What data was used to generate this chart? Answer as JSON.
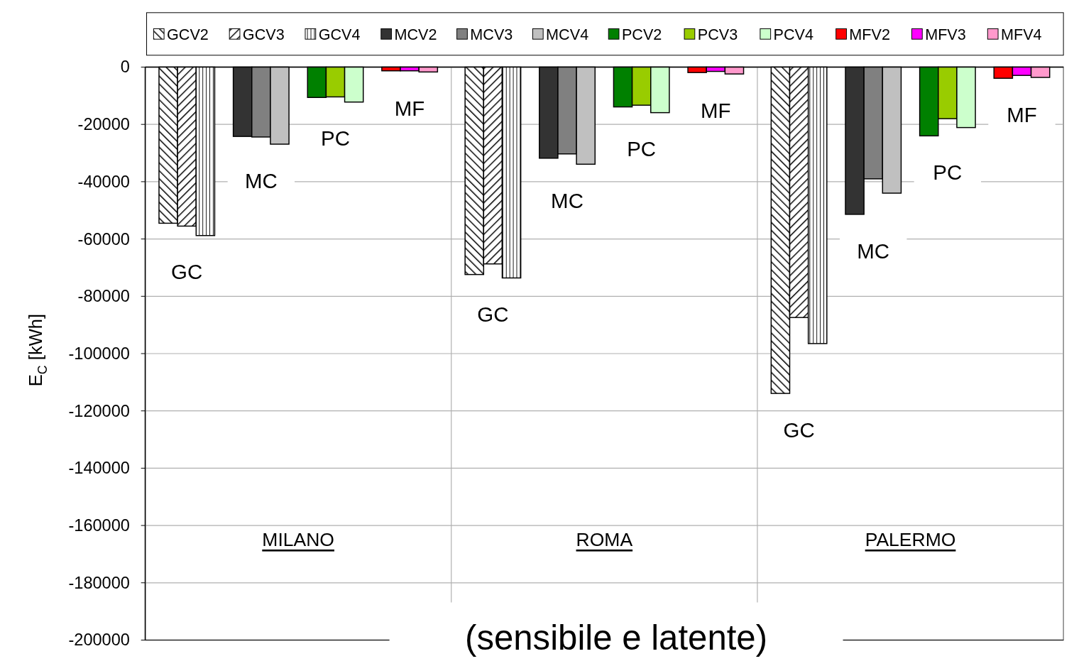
{
  "chart_data": {
    "type": "bar",
    "title": "(sensibile e latente)",
    "ylabel": "E$_{C}$ [kWh]",
    "categories": [
      "MILANO",
      "ROMA",
      "PALERMO"
    ],
    "series": [
      {
        "name": "GCV2",
        "color": "#000000",
        "values": [
          -54500,
          -72400,
          -113900
        ]
      },
      {
        "name": "GCV3",
        "color": "#000000",
        "values": [
          -55500,
          -68700,
          -87400
        ]
      },
      {
        "name": "GCV4",
        "color": "#000000",
        "values": [
          -58800,
          -73600,
          -96500
        ]
      },
      {
        "name": "MCV2",
        "color": "#333333",
        "values": [
          -24200,
          -31800,
          -51400
        ]
      },
      {
        "name": "MCV3",
        "color": "#808080",
        "values": [
          -24400,
          -30300,
          -39000
        ]
      },
      {
        "name": "MCV4",
        "color": "#c0c0c0",
        "values": [
          -26900,
          -33900,
          -44000
        ]
      },
      {
        "name": "PCV2",
        "color": "#008000",
        "values": [
          -10600,
          -13900,
          -24000
        ]
      },
      {
        "name": "PCV3",
        "color": "#99cc00",
        "values": [
          -10400,
          -13300,
          -18000
        ]
      },
      {
        "name": "PCV4",
        "color": "#ccffcc",
        "values": [
          -12200,
          -15900,
          -21100
        ]
      },
      {
        "name": "MFV2",
        "color": "#ff0000",
        "values": [
          -1300,
          -1900,
          -3900
        ]
      },
      {
        "name": "MFV3",
        "color": "#ff00ff",
        "values": [
          -1300,
          -1500,
          -2900
        ]
      },
      {
        "name": "MFV4",
        "color": "#ff99cc",
        "values": [
          -1700,
          -2400,
          -3600
        ]
      }
    ],
    "ylim": [
      -200000,
      0
    ],
    "yticks": [
      -200000,
      -180000,
      -160000,
      -140000,
      -120000,
      -100000,
      -80000,
      -60000,
      -40000,
      -20000,
      0
    ],
    "grid": "y",
    "legend": "top",
    "annotations": [
      "GC",
      "MC",
      "PC",
      "MF",
      "GC",
      "MC",
      "PC",
      "MF",
      "GC",
      "MC",
      "PC",
      "MF"
    ]
  }
}
